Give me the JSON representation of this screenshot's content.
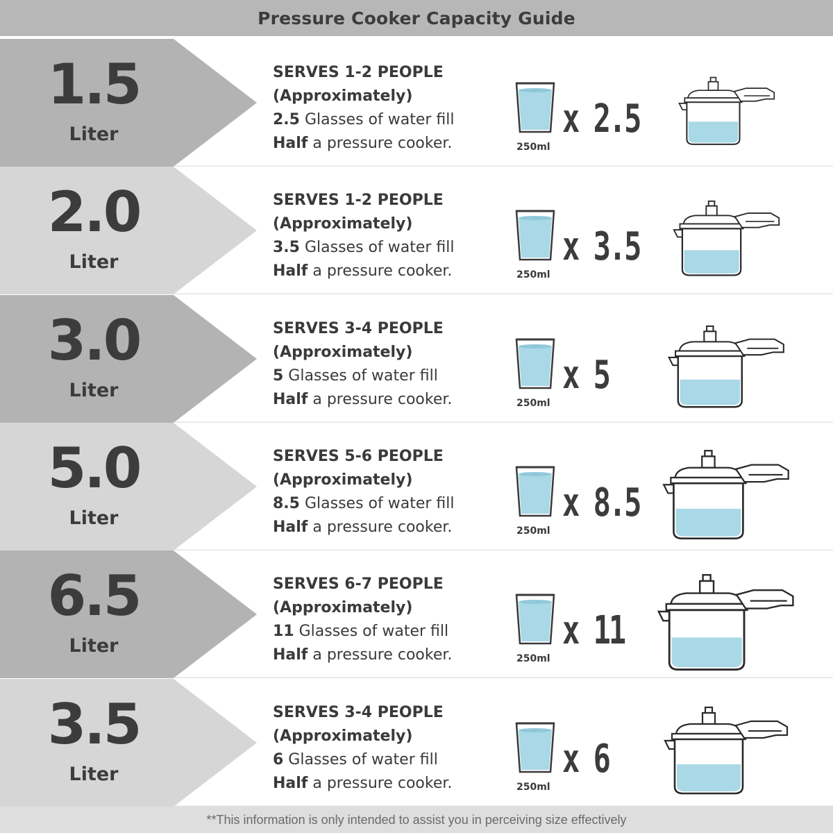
{
  "header": {
    "title": "Pressure Cooker Capacity Guide"
  },
  "colors": {
    "header_bg": "#b7b7b7",
    "chevron_dark": "#b3b3b3",
    "chevron_light": "#d6d6d6",
    "text": "#3c3c3c",
    "water": "#a9d8e6",
    "outline": "#2a2a2a"
  },
  "rows": [
    {
      "size": "1.5",
      "unit": "Liter",
      "serves": "SERVES 1-2 PEOPLE",
      "approx": "(Approximately)",
      "glasses": "2.5",
      "fill_text": " Glasses of water fill",
      "half": "Half",
      "half_rest": " a pressure cooker.",
      "glass_label": "250ml",
      "multiplier": "x 2.5",
      "glass_icon": "water-glass-icon",
      "cooker_icon": "pressure-cooker-icon"
    },
    {
      "size": "2.0",
      "unit": "Liter",
      "serves": "SERVES 1-2 PEOPLE",
      "approx": "(Approximately)",
      "glasses": "3.5",
      "fill_text": " Glasses of water fill",
      "half": "Half",
      "half_rest": " a pressure cooker.",
      "glass_label": "250ml",
      "multiplier": "x 3.5",
      "glass_icon": "water-glass-icon",
      "cooker_icon": "pressure-cooker-icon"
    },
    {
      "size": "3.0",
      "unit": "Liter",
      "serves": "SERVES 3-4 PEOPLE",
      "approx": "(Approximately)",
      "glasses": "5",
      "fill_text": " Glasses of water fill",
      "half": "Half",
      "half_rest": " a pressure cooker.",
      "glass_label": "250ml",
      "multiplier": "x 5",
      "glass_icon": "water-glass-icon",
      "cooker_icon": "pressure-cooker-icon"
    },
    {
      "size": "5.0",
      "unit": "Liter",
      "serves": "SERVES 5-6 PEOPLE",
      "approx": "(Approximately)",
      "glasses": "8.5",
      "fill_text": " Glasses of water fill",
      "half": "Half",
      "half_rest": " a pressure cooker.",
      "glass_label": "250ml",
      "multiplier": "x 8.5",
      "glass_icon": "water-glass-icon",
      "cooker_icon": "pressure-cooker-icon"
    },
    {
      "size": "6.5",
      "unit": "Liter",
      "serves": "SERVES 6-7 PEOPLE",
      "approx": "(Approximately)",
      "glasses": "11",
      "fill_text": " Glasses of water fill",
      "half": "Half",
      "half_rest": " a pressure cooker.",
      "glass_label": "250ml",
      "multiplier": "x 11",
      "glass_icon": "water-glass-icon",
      "cooker_icon": "pressure-cooker-icon"
    },
    {
      "size": "3.5",
      "unit": "Liter",
      "serves": "SERVES 3-4 PEOPLE",
      "approx": "(Approximately)",
      "glasses": "6",
      "fill_text": " Glasses of water fill",
      "half": "Half",
      "half_rest": " a pressure cooker.",
      "glass_label": "250ml",
      "multiplier": "x 6",
      "glass_icon": "water-glass-icon",
      "cooker_icon": "pressure-cooker-icon"
    }
  ],
  "footer": {
    "note": "**This information is only intended to assist you in perceiving size effectively"
  }
}
